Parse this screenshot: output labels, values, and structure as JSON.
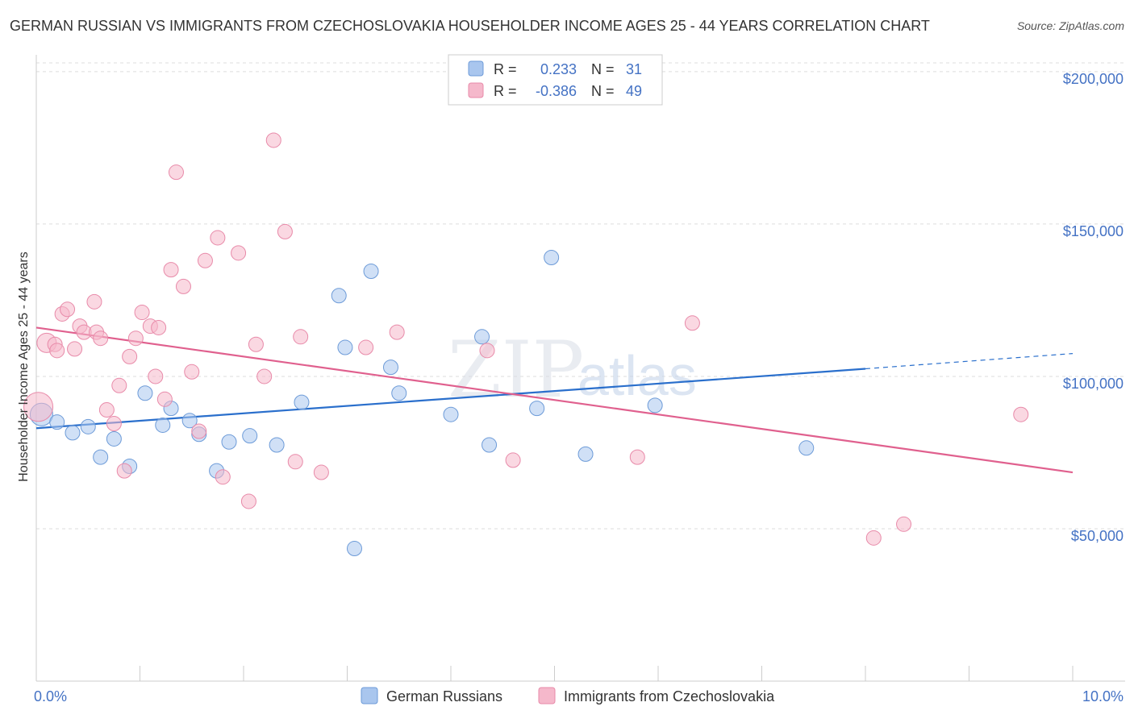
{
  "title": "GERMAN RUSSIAN VS IMMIGRANTS FROM CZECHOSLOVAKIA HOUSEHOLDER INCOME AGES 25 - 44 YEARS CORRELATION CHART",
  "source": "Source: ZipAtlas.com",
  "watermark": {
    "zip": "ZIP",
    "atlas": "atlas"
  },
  "colors": {
    "blue_fill": "#a9c6ee",
    "blue_stroke": "#6d9bd8",
    "blue_line": "#2a6fcc",
    "pink_fill": "#f5b8cb",
    "pink_stroke": "#e88aa9",
    "pink_line": "#e0608e",
    "axis_text": "#4472c4",
    "grid": "#dddddd"
  },
  "legend_box": {
    "rows": [
      {
        "r_label": "R =",
        "r_value": "0.233",
        "n_label": "N =",
        "n_value": "31"
      },
      {
        "r_label": "R =",
        "r_value": "-0.386",
        "n_label": "N =",
        "n_value": "49"
      }
    ]
  },
  "chart_data": {
    "type": "scatter",
    "title": "GERMAN RUSSIAN VS IMMIGRANTS FROM CZECHOSLOVAKIA HOUSEHOLDER INCOME AGES 25 - 44 YEARS CORRELATION CHART",
    "xlabel": "",
    "ylabel": "Householder Income Ages 25 - 44 years",
    "xlim": [
      0,
      10
    ],
    "ylim": [
      0,
      205000
    ],
    "x_tick_labels": [
      "0.0%",
      "10.0%"
    ],
    "y_ticks": [
      50000,
      100000,
      150000,
      200000
    ],
    "y_tick_labels": [
      "$50,000",
      "$100,000",
      "$150,000",
      "$200,000"
    ],
    "grid": true,
    "legend": "bottom-center",
    "series": [
      {
        "name": "German Russians",
        "color": "#a9c6ee",
        "points": [
          [
            0.05,
            87500,
            14
          ],
          [
            0.2,
            85000,
            9
          ],
          [
            0.35,
            81500,
            9
          ],
          [
            0.5,
            83500,
            9
          ],
          [
            0.62,
            73500,
            9
          ],
          [
            0.75,
            79500,
            9
          ],
          [
            0.9,
            70500,
            9
          ],
          [
            1.05,
            94500,
            9
          ],
          [
            1.22,
            84000,
            9
          ],
          [
            1.3,
            89500,
            9
          ],
          [
            1.48,
            85500,
            9
          ],
          [
            1.57,
            81000,
            9
          ],
          [
            1.74,
            69000,
            9
          ],
          [
            1.86,
            78500,
            9
          ],
          [
            2.06,
            80500,
            9
          ],
          [
            2.32,
            77500,
            9
          ],
          [
            2.56,
            91500,
            9
          ],
          [
            2.92,
            126500,
            9
          ],
          [
            2.98,
            109500,
            9
          ],
          [
            3.07,
            43500,
            9
          ],
          [
            3.23,
            134500,
            9
          ],
          [
            3.42,
            103000,
            9
          ],
          [
            3.5,
            94500,
            9
          ],
          [
            4.0,
            87500,
            9
          ],
          [
            4.3,
            113000,
            9
          ],
          [
            4.37,
            77500,
            9
          ],
          [
            4.83,
            89500,
            9
          ],
          [
            4.97,
            139000,
            9
          ],
          [
            5.3,
            74500,
            9
          ],
          [
            5.97,
            90500,
            9
          ],
          [
            7.43,
            76500,
            9
          ]
        ]
      },
      {
        "name": "Immigrants from Czechoslovakia",
        "color": "#f5b8cb",
        "points": [
          [
            0.02,
            90000,
            18
          ],
          [
            0.1,
            111000,
            12
          ],
          [
            0.18,
            110500,
            9
          ],
          [
            0.2,
            108500,
            9
          ],
          [
            0.25,
            120500,
            9
          ],
          [
            0.3,
            122000,
            9
          ],
          [
            0.37,
            109000,
            9
          ],
          [
            0.42,
            116500,
            9
          ],
          [
            0.46,
            114500,
            9
          ],
          [
            0.56,
            124500,
            9
          ],
          [
            0.58,
            114500,
            9
          ],
          [
            0.62,
            112500,
            9
          ],
          [
            0.68,
            89000,
            9
          ],
          [
            0.75,
            84500,
            9
          ],
          [
            0.8,
            97000,
            9
          ],
          [
            0.85,
            69000,
            9
          ],
          [
            0.9,
            106500,
            9
          ],
          [
            0.96,
            112500,
            9
          ],
          [
            1.02,
            121000,
            9
          ],
          [
            1.1,
            116500,
            9
          ],
          [
            1.15,
            100000,
            9
          ],
          [
            1.18,
            116000,
            9
          ],
          [
            1.24,
            92500,
            9
          ],
          [
            1.3,
            135000,
            9
          ],
          [
            1.35,
            167000,
            9
          ],
          [
            1.42,
            129500,
            9
          ],
          [
            1.5,
            101500,
            9
          ],
          [
            1.57,
            82000,
            9
          ],
          [
            1.63,
            138000,
            9
          ],
          [
            1.75,
            145500,
            9
          ],
          [
            1.8,
            67000,
            9
          ],
          [
            1.95,
            140500,
            9
          ],
          [
            2.05,
            59000,
            9
          ],
          [
            2.12,
            110500,
            9
          ],
          [
            2.2,
            100000,
            9
          ],
          [
            2.29,
            177500,
            9
          ],
          [
            2.4,
            147500,
            9
          ],
          [
            2.5,
            72000,
            9
          ],
          [
            2.55,
            113000,
            9
          ],
          [
            2.75,
            68500,
            9
          ],
          [
            3.18,
            109500,
            9
          ],
          [
            3.48,
            114500,
            9
          ],
          [
            4.35,
            108500,
            9
          ],
          [
            4.6,
            72500,
            9
          ],
          [
            5.8,
            73500,
            9
          ],
          [
            6.33,
            117500,
            9
          ],
          [
            8.08,
            47000,
            9
          ],
          [
            8.37,
            51500,
            9
          ],
          [
            9.5,
            87500,
            9
          ]
        ]
      }
    ],
    "trend_lines": [
      {
        "series": "German Russians",
        "x_start": 0,
        "y_start": 83000,
        "x_end": 8,
        "y_end": 102500,
        "dash_x_end": 10,
        "dash_y_end": 107500
      },
      {
        "series": "Immigrants from Czechoslovakia",
        "x_start": 0,
        "y_start": 116000,
        "x_end": 10,
        "y_end": 68500
      }
    ]
  }
}
